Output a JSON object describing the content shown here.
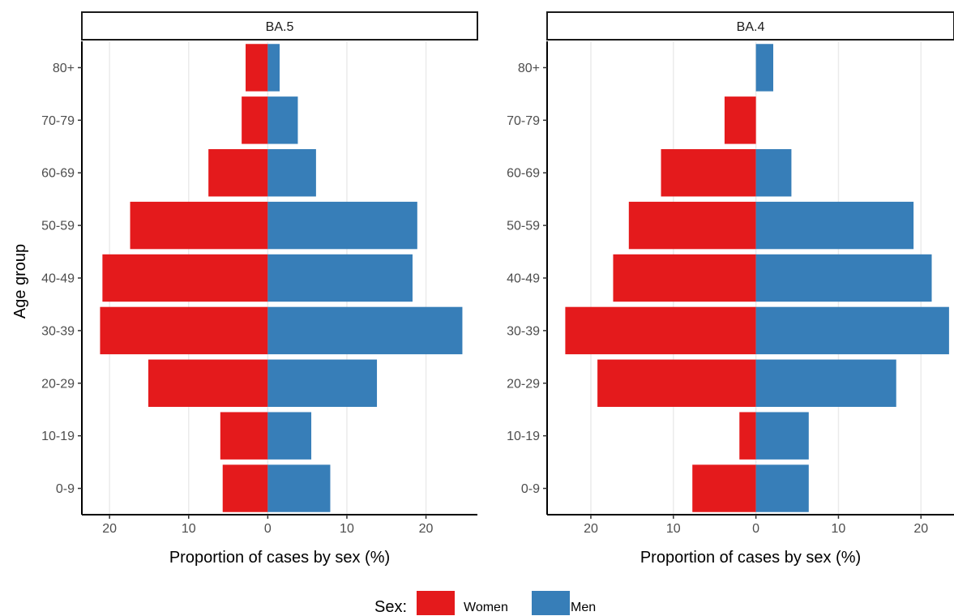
{
  "chart_data": {
    "type": "bar",
    "orientation": "horizontal",
    "layout": "population-pyramid, two facets",
    "ylabel": "Age group",
    "xlabel": "Proportion of cases by sex (%)",
    "categories": [
      "0-9",
      "10-19",
      "20-29",
      "30-39",
      "40-49",
      "50-59",
      "60-69",
      "70-79",
      "80+"
    ],
    "legend": {
      "title": "Sex:",
      "position": "bottom",
      "entries": [
        "Women",
        "Men"
      ]
    },
    "colors": {
      "Women": "#e41a1c",
      "Men": "#377eb8"
    },
    "grid": "vertical major gridlines",
    "panels": [
      {
        "strip": "BA.5",
        "xlim": [
          -23.5,
          26.5
        ],
        "xticks": [
          -20,
          -10,
          0,
          10,
          20
        ],
        "xtick_labels": [
          "20",
          "10",
          "0",
          "10",
          "20"
        ],
        "series": [
          {
            "name": "Women",
            "values": [
              5.7,
              6.0,
              15.1,
              21.2,
              20.9,
              17.4,
              7.5,
              3.3,
              2.8
            ]
          },
          {
            "name": "Men",
            "values": [
              7.9,
              5.5,
              13.8,
              24.6,
              18.3,
              18.9,
              6.1,
              3.8,
              1.5
            ]
          }
        ]
      },
      {
        "strip": "BA.4",
        "xlim": [
          -25.3,
          24.0
        ],
        "xticks": [
          -20,
          -10,
          0,
          10,
          20
        ],
        "xtick_labels": [
          "20",
          "10",
          "0",
          "10",
          "20"
        ],
        "series": [
          {
            "name": "Women",
            "values": [
              7.7,
              2.0,
              19.2,
              23.1,
              17.3,
              15.4,
              11.5,
              3.8,
              0.0
            ]
          },
          {
            "name": "Men",
            "values": [
              6.4,
              6.4,
              17.0,
              23.4,
              21.3,
              19.1,
              4.3,
              0.0,
              2.1
            ]
          }
        ]
      }
    ]
  }
}
